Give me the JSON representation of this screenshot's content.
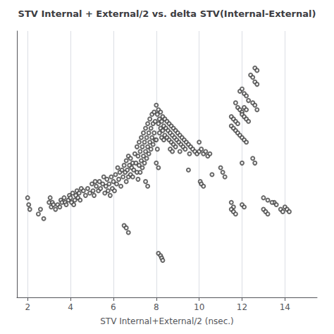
{
  "chart_data": {
    "type": "scatter",
    "title": "STV Internal + External/2 vs. delta STV(Internal-External)",
    "xlabel": "STV Internal+External/2 (nsec.)",
    "xlim": [
      1.5,
      15.5
    ],
    "ylim": [
      -0.5,
      11.0
    ],
    "xticks": [
      2,
      4,
      6,
      8,
      10,
      12,
      14
    ],
    "tick_labels": "x",
    "grid": true,
    "color": "#444444",
    "marker": "circle",
    "x": [
      2.0,
      2.05,
      2.1,
      2.5,
      2.6,
      2.75,
      3.0,
      3.05,
      3.1,
      3.15,
      3.2,
      3.3,
      3.4,
      3.5,
      3.55,
      3.6,
      3.7,
      3.75,
      3.8,
      3.9,
      3.95,
      4.0,
      4.05,
      4.1,
      4.15,
      4.2,
      4.25,
      4.3,
      4.35,
      4.4,
      4.45,
      4.5,
      4.6,
      4.7,
      4.8,
      4.9,
      5.0,
      5.05,
      5.1,
      5.15,
      5.2,
      5.3,
      5.35,
      5.4,
      5.5,
      5.55,
      5.6,
      5.65,
      5.7,
      5.75,
      5.8,
      5.85,
      5.9,
      5.95,
      6.0,
      6.05,
      6.1,
      6.15,
      6.2,
      6.25,
      6.3,
      6.35,
      6.4,
      6.45,
      6.5,
      6.55,
      6.6,
      6.6,
      6.65,
      6.7,
      6.7,
      6.75,
      6.8,
      6.8,
      6.85,
      6.9,
      6.9,
      6.95,
      7.0,
      7.05,
      7.1,
      7.15,
      7.1,
      7.15,
      7.2,
      7.25,
      7.2,
      7.25,
      7.3,
      7.35,
      7.3,
      7.35,
      7.4,
      7.45,
      7.4,
      7.45,
      7.5,
      7.55,
      7.5,
      7.55,
      7.6,
      7.65,
      7.6,
      7.65,
      7.7,
      7.75,
      7.7,
      7.75,
      7.8,
      7.85,
      7.8,
      7.85,
      7.9,
      7.95,
      7.9,
      7.95,
      8.0,
      8.05,
      8.1,
      8.15,
      8.0,
      8.05,
      8.1,
      8.15,
      8.2,
      8.25,
      8.2,
      8.25,
      8.3,
      8.35,
      8.3,
      8.35,
      8.4,
      8.4,
      8.45,
      8.5,
      8.5,
      8.55,
      8.6,
      8.65,
      8.6,
      8.65,
      8.7,
      8.75,
      8.7,
      8.75,
      8.8,
      8.8,
      8.85,
      8.9,
      8.9,
      8.95,
      9.0,
      9.05,
      9.1,
      9.1,
      9.15,
      9.2,
      9.25,
      9.3,
      9.35,
      9.4,
      9.5,
      9.55,
      9.6,
      9.7,
      9.8,
      9.9,
      10.0,
      10.0,
      10.1,
      10.2,
      10.3,
      10.4,
      10.5,
      10.05,
      10.1,
      10.2,
      8.0,
      8.1,
      7.5,
      7.6,
      6.5,
      6.6,
      6.7,
      8.1,
      8.2,
      8.25,
      8.3,
      11.0,
      11.1,
      11.2,
      11.5,
      11.6,
      11.5,
      11.6,
      11.7,
      11.8,
      11.7,
      11.8,
      11.9,
      12.0,
      12.1,
      12.2,
      11.9,
      12.0,
      12.1,
      12.2,
      12.3,
      12.4,
      12.5,
      12.6,
      12.7,
      12.5,
      12.6,
      12.7,
      11.5,
      11.6,
      11.7,
      11.8,
      11.9,
      12.0,
      12.1,
      12.2,
      12.0,
      12.1,
      12.2,
      12.3,
      11.5,
      11.6,
      11.7,
      12.0,
      12.1,
      13.0,
      13.1,
      13.2,
      13.5,
      13.6,
      13.8,
      13.9,
      14.0,
      14.1,
      14.2,
      13.0,
      13.2,
      13.4,
      9.5,
      10.6,
      12.6,
      12.7,
      12.5,
      12.6,
      12.0
    ],
    "values": [
      3.8,
      3.5,
      3.3,
      3.1,
      3.3,
      2.9,
      3.6,
      3.8,
      3.4,
      3.6,
      3.5,
      3.3,
      3.5,
      3.4,
      3.7,
      3.6,
      3.8,
      3.6,
      3.5,
      3.7,
      3.9,
      3.8,
      3.6,
      4.0,
      3.5,
      3.7,
      3.9,
      4.1,
      3.8,
      4.0,
      3.7,
      4.2,
      4.1,
      3.9,
      4.2,
      4.0,
      4.4,
      4.1,
      3.9,
      4.5,
      4.3,
      4.1,
      4.5,
      4.2,
      4.4,
      4.7,
      4.0,
      4.3,
      4.6,
      4.1,
      4.4,
      3.9,
      4.7,
      4.2,
      4.5,
      4.1,
      4.8,
      4.4,
      5.1,
      4.6,
      4.9,
      4.3,
      5.0,
      4.7,
      5.2,
      4.9,
      4.5,
      5.4,
      5.0,
      4.7,
      5.6,
      5.2,
      4.8,
      5.5,
      5.1,
      4.7,
      5.3,
      5.0,
      5.7,
      5.3,
      4.9,
      4.6,
      6.0,
      5.6,
      5.2,
      4.9,
      6.2,
      5.8,
      5.4,
      5.1,
      6.4,
      6.0,
      5.6,
      5.3,
      6.6,
      6.2,
      5.8,
      5.5,
      6.8,
      6.4,
      6.0,
      5.7,
      7.0,
      6.6,
      6.2,
      5.9,
      7.2,
      6.8,
      6.4,
      6.1,
      7.4,
      7.0,
      6.6,
      6.3,
      7.5,
      7.1,
      7.8,
      7.4,
      7.0,
      6.6,
      6.3,
      5.9,
      7.6,
      7.2,
      6.8,
      6.4,
      7.5,
      7.1,
      6.7,
      6.3,
      7.3,
      6.9,
      6.5,
      7.2,
      6.8,
      6.4,
      7.1,
      6.7,
      6.3,
      5.9,
      7.0,
      6.6,
      6.2,
      5.8,
      6.9,
      6.5,
      6.1,
      6.8,
      6.4,
      6.0,
      6.7,
      6.3,
      6.6,
      6.2,
      5.8,
      6.5,
      6.1,
      6.4,
      6.0,
      6.3,
      5.9,
      6.2,
      6.1,
      5.7,
      6.0,
      5.9,
      5.8,
      5.7,
      6.2,
      5.8,
      5.9,
      5.7,
      5.8,
      5.6,
      5.7,
      4.5,
      4.4,
      4.3,
      5.3,
      5.1,
      4.5,
      4.3,
      2.6,
      2.5,
      2.3,
      1.4,
      1.3,
      1.2,
      1.1,
      5.1,
      4.9,
      4.7,
      3.6,
      3.4,
      7.3,
      7.2,
      7.1,
      7.0,
      7.9,
      7.7,
      7.6,
      7.5,
      7.7,
      7.6,
      8.4,
      8.5,
      8.3,
      8.2,
      8.0,
      9.1,
      9.0,
      8.8,
      8.7,
      7.9,
      7.8,
      7.6,
      6.9,
      6.8,
      6.7,
      6.6,
      6.5,
      6.4,
      6.3,
      6.2,
      7.4,
      7.3,
      7.2,
      7.1,
      3.3,
      3.2,
      3.1,
      3.5,
      3.4,
      3.3,
      3.2,
      3.1,
      3.6,
      3.5,
      3.3,
      3.2,
      3.4,
      3.3,
      3.2,
      3.8,
      3.7,
      3.6,
      5.0,
      4.8,
      9.4,
      9.3,
      5.5,
      5.3,
      5.3
    ]
  }
}
